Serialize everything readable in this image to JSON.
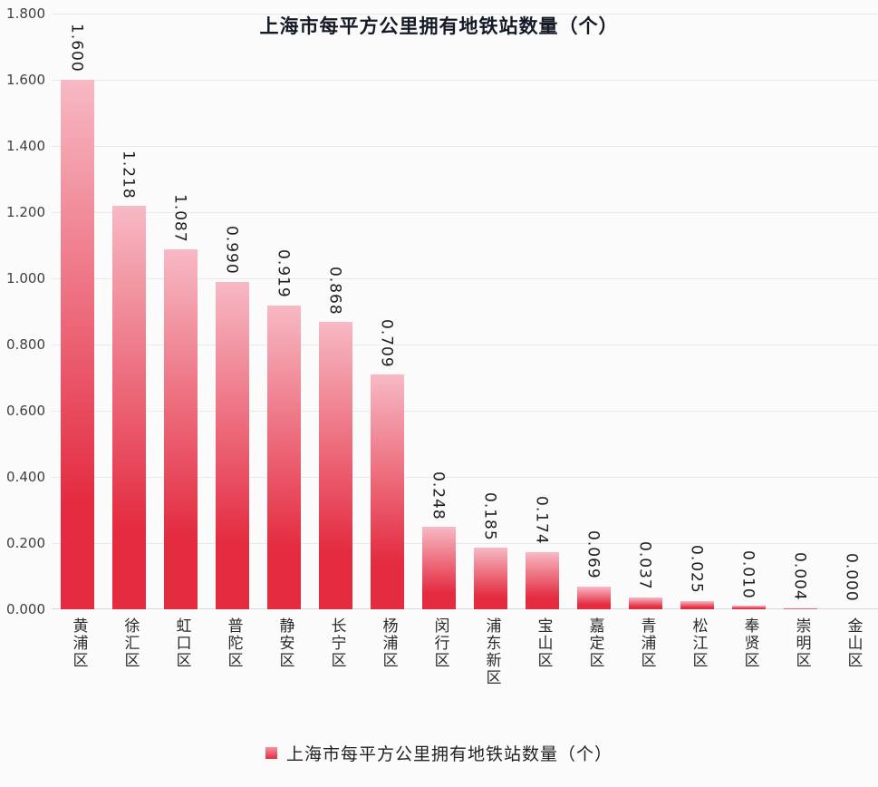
{
  "chart_data": {
    "type": "bar",
    "title": "上海市每平方公里拥有地铁站数量（个）",
    "categories": [
      "黄浦区",
      "徐汇区",
      "虹口区",
      "普陀区",
      "静安区",
      "长宁区",
      "杨浦区",
      "闵行区",
      "浦东新区",
      "宝山区",
      "嘉定区",
      "青浦区",
      "松江区",
      "奉贤区",
      "崇明区",
      "金山区"
    ],
    "values": [
      1.6,
      1.218,
      1.087,
      0.99,
      0.919,
      0.868,
      0.709,
      0.248,
      0.185,
      0.174,
      0.069,
      0.037,
      0.025,
      0.01,
      0.004,
      0.0
    ],
    "xlabel": "",
    "ylabel": "",
    "ylim": [
      0,
      1.8
    ],
    "ytick_step": 0.2,
    "ytick_labels": [
      "0.000",
      "0.200",
      "0.400",
      "0.600",
      "0.800",
      "1.000",
      "1.200",
      "1.400",
      "1.600",
      "1.800"
    ],
    "value_label_decimals": 3,
    "grid": true,
    "legend_label": "上海市每平方公里拥有地铁站数量（个）",
    "legend_position": "bottom",
    "colors": {
      "bar_top": "#f7b9c4",
      "bar_bottom": "#e42b40",
      "grid_line": "#e9e9ec",
      "axis_line": "#d8d8d8",
      "title_text": "#141a26",
      "tick_text": "#3f3f3f",
      "value_text": "#1d1d1d",
      "category_text": "#2b2b2b",
      "background": "#fcfbfb"
    }
  }
}
